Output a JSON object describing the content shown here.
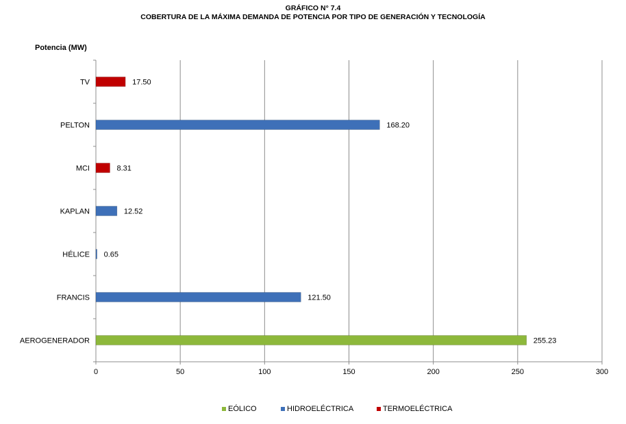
{
  "chart_data": {
    "type": "bar",
    "orientation": "horizontal",
    "title": "GRÁFICO N° 7.4",
    "subtitle": "COBERTURA DE LA MÁXIMA  DEMANDA  DE POTENCIA POR TIPO DE GENERACIÓN  Y  TECNOLOGÍA",
    "ylabel": "Potencia (MW)",
    "xlim": [
      0,
      300
    ],
    "xticks": [
      0,
      50,
      100,
      150,
      200,
      250,
      300
    ],
    "grid": "vertical",
    "legend": "bottom",
    "categories": [
      "TV",
      "PELTON",
      "MCI",
      "KAPLAN",
      "HÉLICE",
      "FRANCIS",
      "AEROGENERADOR"
    ],
    "series": [
      {
        "name": "EÓLICO",
        "color": "#8DB83B",
        "values": [
          null,
          null,
          null,
          null,
          null,
          null,
          255.23
        ],
        "labels": [
          "",
          "",
          "",
          "",
          "",
          "",
          "255.23"
        ]
      },
      {
        "name": "HIDROELÉCTRICA",
        "color": "#3E70B8",
        "values": [
          null,
          168.2,
          null,
          12.52,
          0.65,
          121.5,
          null
        ],
        "labels": [
          "",
          "168.20",
          "",
          "12.52",
          "0.65",
          "121.50",
          ""
        ]
      },
      {
        "name": "TERMOELÉCTRICA",
        "color": "#C00000",
        "values": [
          17.5,
          null,
          8.31,
          null,
          null,
          null,
          null
        ],
        "labels": [
          "17.50",
          "",
          "8.31",
          "",
          "",
          "",
          ""
        ]
      }
    ]
  }
}
